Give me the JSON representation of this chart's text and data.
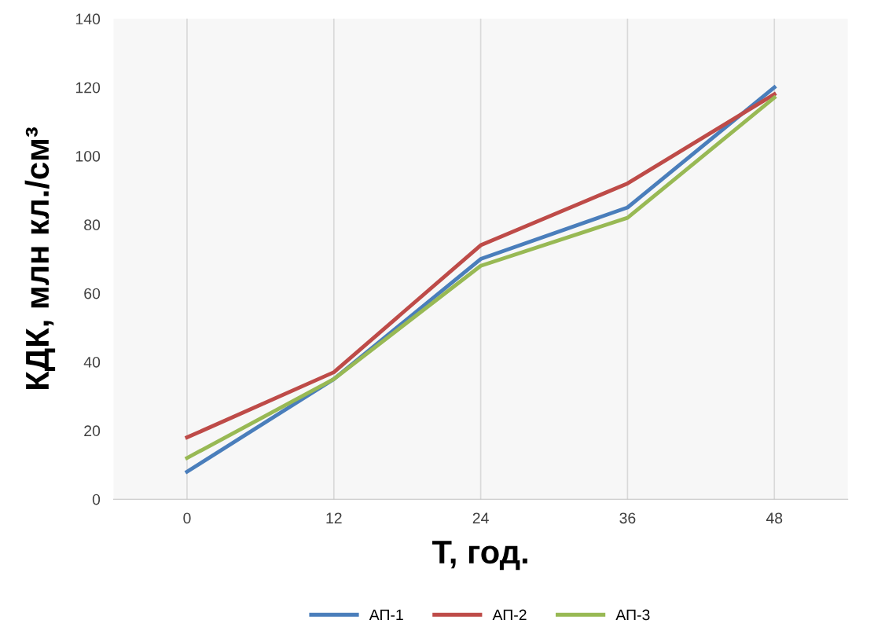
{
  "chart_data": {
    "type": "line",
    "xlabel": "Т, год.",
    "ylabel": "КДК, млн кл./см³",
    "categories": [
      "0",
      "12",
      "24",
      "36",
      "48"
    ],
    "series": [
      {
        "name": "АП-1",
        "color": "#4a7ebb",
        "values": [
          8,
          35,
          70,
          85,
          120
        ]
      },
      {
        "name": "АП-2",
        "color": "#be4b48",
        "values": [
          18,
          37,
          74,
          92,
          118
        ]
      },
      {
        "name": "АП-3",
        "color": "#98b954",
        "values": [
          12,
          35,
          68,
          82,
          117
        ]
      }
    ],
    "ylim": [
      0,
      140
    ],
    "yticks": [
      0,
      20,
      40,
      60,
      80,
      100,
      120,
      140
    ],
    "grid": "x",
    "legend": "bottom",
    "marker": "none",
    "line_style": "solid"
  }
}
